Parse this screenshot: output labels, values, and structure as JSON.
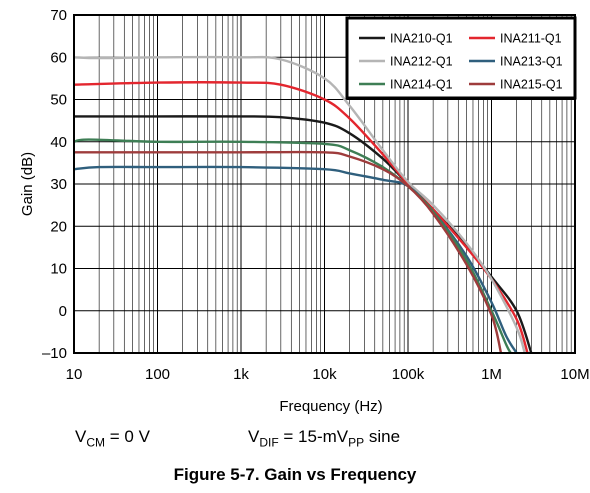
{
  "chart_data": {
    "type": "line",
    "title": "",
    "xlabel": "Frequency (Hz)",
    "ylabel": "Gain (dB)",
    "x_scale": "log",
    "xlim": [
      10,
      10000000
    ],
    "ylim": [
      -10,
      70
    ],
    "x_ticks": [
      10,
      100,
      1000,
      10000,
      100000,
      1000000,
      10000000
    ],
    "x_tick_labels": [
      "10",
      "100",
      "1k",
      "10k",
      "100k",
      "1M",
      "10M"
    ],
    "y_ticks": [
      -10,
      0,
      10,
      20,
      30,
      40,
      50,
      60,
      70
    ],
    "y_tick_labels": [
      "–10",
      "0",
      "10",
      "20",
      "30",
      "40",
      "50",
      "60",
      "70"
    ],
    "grid": true,
    "legend_position": "top-right",
    "series": [
      {
        "name": "INA210-Q1",
        "color": "#1a1a1a",
        "x": [
          10,
          100,
          1000,
          3000,
          10000,
          20000,
          50000,
          100000,
          200000,
          500000,
          1000000,
          2000000,
          3000000
        ],
        "y": [
          46,
          46,
          46,
          45.8,
          44.5,
          42,
          36,
          30,
          24,
          15.5,
          8,
          0,
          -10
        ]
      },
      {
        "name": "INA211-Q1",
        "color": "#e3262e",
        "x": [
          10,
          100,
          1000,
          3000,
          10000,
          20000,
          50000,
          100000,
          200000,
          500000,
          1000000,
          2000000,
          2700000
        ],
        "y": [
          53.5,
          54,
          54,
          53.5,
          50,
          45.5,
          37,
          30,
          24,
          15,
          7.5,
          -2,
          -10
        ]
      },
      {
        "name": "INA212-Q1",
        "color": "#b5b5b5",
        "x": [
          10,
          20,
          100,
          1000,
          3000,
          10000,
          20000,
          50000,
          100000,
          200000,
          500000,
          1000000,
          2000000,
          2500000
        ],
        "y": [
          60,
          59.8,
          60,
          60,
          59.5,
          55,
          48.5,
          38,
          30.5,
          25,
          16,
          7.5,
          -4,
          -10
        ]
      },
      {
        "name": "INA213-Q1",
        "color": "#2f5f7d",
        "x": [
          10,
          20,
          100,
          1000,
          10000,
          20000,
          50000,
          100000,
          200000,
          500000,
          1000000,
          1500000,
          2000000
        ],
        "y": [
          33.5,
          34,
          34,
          34,
          33.5,
          32.5,
          31,
          29.5,
          23.5,
          13,
          2,
          -6,
          -10
        ]
      },
      {
        "name": "INA214-Q1",
        "color": "#3e7e55",
        "x": [
          10,
          15,
          100,
          1000,
          10000,
          20000,
          50000,
          100000,
          200000,
          500000,
          1000000,
          1500000,
          1700000
        ],
        "y": [
          40,
          40.5,
          40,
          40,
          39.5,
          38,
          34,
          29.5,
          23.5,
          12,
          0,
          -8,
          -10
        ]
      },
      {
        "name": "INA215-Q1",
        "color": "#9e3c3c",
        "x": [
          10,
          100,
          1000,
          10000,
          20000,
          50000,
          100000,
          200000,
          500000,
          1000000,
          1300000
        ],
        "y": [
          37.5,
          37.5,
          37.5,
          37.5,
          36.5,
          33.5,
          29.5,
          23,
          11,
          -1,
          -10
        ]
      }
    ]
  },
  "conditions": {
    "vcm_main": "V",
    "vcm_sub": "CM",
    "vcm_rest": " = 0 V",
    "vdif_main": "V",
    "vdif_sub": "DIF",
    "vdif_mid": " = 15-mV",
    "vdif_sub2": "PP",
    "vdif_rest": " sine"
  },
  "caption": "Figure 5-7. Gain vs Frequency"
}
